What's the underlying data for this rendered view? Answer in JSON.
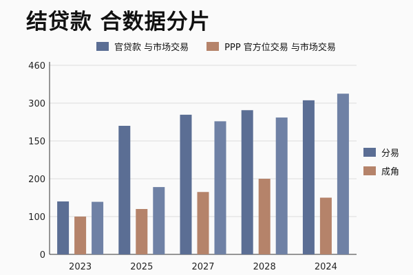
{
  "chart_data": {
    "type": "bar",
    "title": "结贷款  合数据分片",
    "legend_top": [
      {
        "name": "官贷款 与市场交易",
        "color": "#5b6e94"
      },
      {
        "name": "PPP 官方位交易 与市场交易",
        "color": "#b5836a"
      }
    ],
    "legend_side": [
      {
        "name": "分易",
        "color": "#5b6e94"
      },
      {
        "name": "成角",
        "color": "#b5836a"
      }
    ],
    "legend_placement": "top and right",
    "categories": [
      "2023",
      "2025",
      "2027",
      "2028",
      "2024"
    ],
    "series": [
      {
        "values": [
          140,
          210,
          254,
          272,
          312
        ],
        "color": "#5b6e94"
      },
      {
        "values": [
          100,
          120,
          165,
          200,
          150
        ],
        "color": "#b5836a"
      },
      {
        "values": [
          139,
          178,
          228,
          243,
          340
        ],
        "color": "#6f81a5"
      }
    ],
    "yticks": [
      {
        "label": "0",
        "level": 0
      },
      {
        "label": "100",
        "level": 1
      },
      {
        "label": "200",
        "level": 2
      },
      {
        "label": "150",
        "level": 3
      },
      {
        "label": "300",
        "level": 4
      },
      {
        "label": "460",
        "level": 5
      }
    ],
    "grid": true
  }
}
